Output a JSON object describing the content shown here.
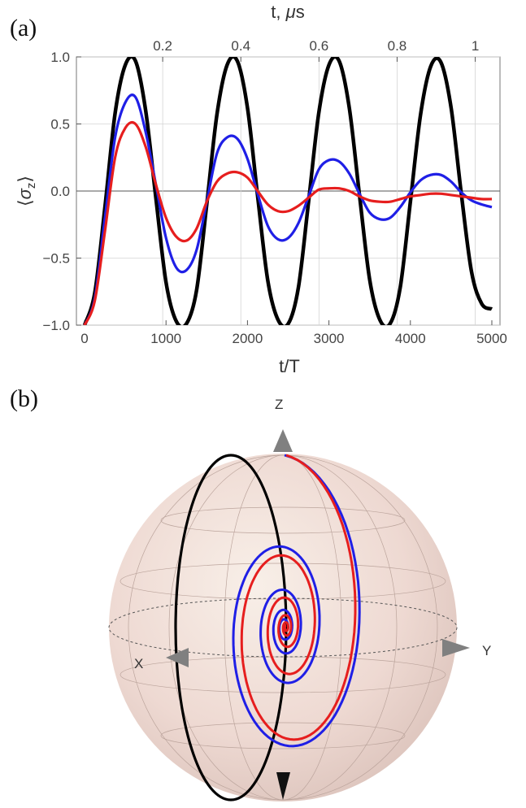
{
  "panel_a_label": "(a)",
  "panel_b_label": "(b)",
  "chart_data": [
    {
      "type": "line",
      "xlabel": "t/T",
      "x2label_prefix": "t, ",
      "x2label_unit_mu": "μ",
      "x2label_unit_rest": "s",
      "ylabel_open": "⟨",
      "ylabel_sigma": "σ",
      "ylabel_sub": "z",
      "ylabel_close": "⟩",
      "xlim": [
        -100,
        5100
      ],
      "ylim": [
        -1.0,
        1.0
      ],
      "x_ticks": [
        0,
        1000,
        2000,
        3000,
        4000,
        5000
      ],
      "x_tick_labels": [
        "0",
        "1000",
        "2000",
        "3000",
        "4000",
        "5000"
      ],
      "x2_ticks": [
        0.2,
        0.4,
        0.6,
        0.8,
        1.0
      ],
      "x2_tick_labels": [
        "0.2",
        "0.4",
        "0.6",
        "0.8",
        "1"
      ],
      "x2_per_x": 0.0002085,
      "y_ticks": [
        -1.0,
        -0.5,
        0.0,
        0.5,
        1.0
      ],
      "y_tick_labels": [
        "−1.0",
        "−0.5",
        "0.0",
        "0.5",
        "1.0"
      ],
      "grid": true,
      "series": [
        {
          "color": "#000000",
          "x": [
            0,
            125,
            250,
            375,
            500,
            625,
            750,
            875,
            1000,
            1125,
            1250,
            1375,
            1500,
            1625,
            1750,
            1875,
            2000,
            2125,
            2250,
            2375,
            2500,
            2625,
            2750,
            2875,
            3000,
            3125,
            3250,
            3375,
            3500,
            3625,
            3750,
            3875,
            4000,
            4125,
            4250,
            4375,
            4500,
            4625,
            4750,
            4875,
            5000
          ],
          "y": [
            -1.0,
            -0.76,
            -0.12,
            0.58,
            0.94,
            0.97,
            0.6,
            -0.05,
            -0.68,
            -0.97,
            -0.99,
            -0.74,
            -0.1,
            0.57,
            0.94,
            0.97,
            0.62,
            -0.04,
            -0.67,
            -0.96,
            -0.99,
            -0.72,
            -0.08,
            0.58,
            0.94,
            0.97,
            0.62,
            -0.03,
            -0.66,
            -0.96,
            -0.99,
            -0.72,
            -0.08,
            0.57,
            0.93,
            0.96,
            0.62,
            -0.02,
            -0.6,
            -0.84,
            -0.88
          ]
        },
        {
          "color": "#1f1fe6",
          "x": [
            0,
            125,
            250,
            375,
            500,
            625,
            750,
            875,
            1000,
            1125,
            1250,
            1375,
            1500,
            1625,
            1750,
            1875,
            2000,
            2125,
            2250,
            2375,
            2500,
            2625,
            2750,
            2875,
            3000,
            3125,
            3250,
            3375,
            3500,
            3625,
            3750,
            3875,
            4000,
            4125,
            4250,
            4375,
            4500,
            4625,
            4750,
            4875,
            5000
          ],
          "y": [
            -1.0,
            -0.8,
            -0.2,
            0.4,
            0.66,
            0.7,
            0.44,
            0.05,
            -0.35,
            -0.57,
            -0.59,
            -0.44,
            -0.08,
            0.28,
            0.4,
            0.39,
            0.24,
            -0.02,
            -0.26,
            -0.36,
            -0.35,
            -0.24,
            -0.04,
            0.16,
            0.23,
            0.22,
            0.13,
            -0.02,
            -0.16,
            -0.21,
            -0.2,
            -0.12,
            -0.01,
            0.08,
            0.12,
            0.12,
            0.07,
            -0.01,
            -0.07,
            -0.1,
            -0.12
          ]
        },
        {
          "color": "#e61e1e",
          "x": [
            0,
            125,
            250,
            375,
            500,
            625,
            750,
            875,
            1000,
            1125,
            1250,
            1375,
            1500,
            1625,
            1750,
            1875,
            2000,
            2125,
            2250,
            2375,
            2500,
            2625,
            2750,
            2875,
            3000,
            3125,
            3250,
            3375,
            3500,
            3625,
            3750,
            3875,
            4000,
            4125,
            4250,
            4375,
            4500,
            4625,
            4750,
            4875,
            5000
          ],
          "y": [
            -1.0,
            -0.82,
            -0.3,
            0.25,
            0.47,
            0.5,
            0.33,
            0.05,
            -0.2,
            -0.34,
            -0.37,
            -0.28,
            -0.08,
            0.07,
            0.13,
            0.14,
            0.1,
            0.0,
            -0.1,
            -0.15,
            -0.15,
            -0.11,
            -0.05,
            0.01,
            0.02,
            0.02,
            0.0,
            -0.04,
            -0.07,
            -0.08,
            -0.08,
            -0.06,
            -0.04,
            -0.03,
            -0.02,
            -0.02,
            -0.03,
            -0.04,
            -0.05,
            -0.06,
            -0.06
          ]
        }
      ]
    },
    {
      "type": "other",
      "description_kind": "bloch-sphere",
      "axis_labels": {
        "z": "Z",
        "x": "X",
        "y": "Y"
      },
      "series_colors": [
        "#000000",
        "#1f1fe6",
        "#e61e1e"
      ],
      "sphere_color": "#ecd9d2"
    }
  ]
}
